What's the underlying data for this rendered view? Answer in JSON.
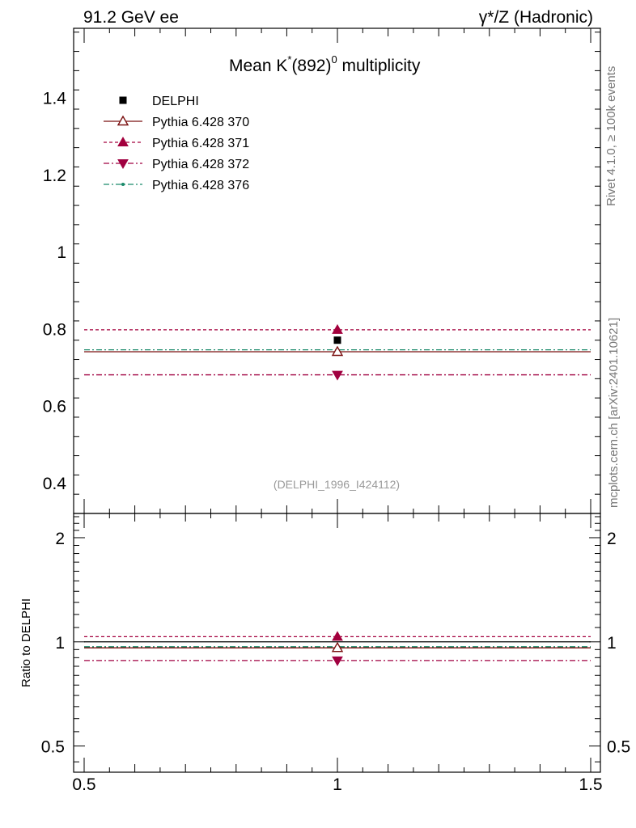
{
  "header": {
    "left": "91.2 GeV ee",
    "right": "γ*/Z (Hadronic)"
  },
  "side_labels": {
    "rivet": "Rivet 4.1.0, ≥ 100k events",
    "mcplots": "mcplots.cern.ch [arXiv:2401.10621]"
  },
  "chart_data": [
    {
      "panel": "main",
      "type": "scatter",
      "title": "Mean K*(892)0 multiplicity",
      "title_parts": {
        "pre": "Mean K",
        "star": "*",
        "mid": "(892)",
        "sup": "0",
        "post": " multiplicity"
      },
      "analysis_label": "(DELPHI_1996_I424112)",
      "xlim": [
        0.5,
        1.5
      ],
      "ylim": [
        0.32,
        1.58
      ],
      "yticks": [
        {
          "v": 0.4,
          "label": "0.4"
        },
        {
          "v": 0.6,
          "label": "0.6"
        },
        {
          "v": 0.8,
          "label": "0.8"
        },
        {
          "v": 1.0,
          "label": "1"
        },
        {
          "v": 1.2,
          "label": "1.2"
        },
        {
          "v": 1.4,
          "label": "1.4"
        }
      ],
      "series": [
        {
          "name": "DELPHI",
          "legend": "DELPHI",
          "x": 1.0,
          "y": 0.77,
          "marker": "square",
          "color": "#000000",
          "line": "none"
        },
        {
          "name": "p370",
          "legend": "Pythia 6.428 370",
          "x": 1.0,
          "y": 0.74,
          "marker": "triangle-up-open",
          "color": "#7a1010",
          "line": "solid"
        },
        {
          "name": "p371",
          "legend": "Pythia 6.428 371",
          "x": 1.0,
          "y": 0.797,
          "marker": "triangle-up",
          "color": "#a3003d",
          "line": "dashed"
        },
        {
          "name": "p372",
          "legend": "Pythia 6.428 372",
          "x": 1.0,
          "y": 0.68,
          "marker": "triangle-down",
          "color": "#a00040",
          "line": "dashdot"
        },
        {
          "name": "p376",
          "legend": "Pythia 6.428 376",
          "x": 1.0,
          "y": 0.745,
          "marker": "dot",
          "color": "#1a8a6a",
          "line": "dashdot"
        }
      ]
    },
    {
      "panel": "ratio",
      "type": "scatter",
      "ylabel": "Ratio to DELPHI",
      "yscale": "log",
      "xlim": [
        0.5,
        1.5
      ],
      "ylim": [
        0.42,
        2.35
      ],
      "yticks": [
        {
          "v": 0.5,
          "label": "0.5"
        },
        {
          "v": 1.0,
          "label": "1"
        },
        {
          "v": 2.0,
          "label": "2"
        }
      ],
      "xticks": [
        {
          "v": 0.5,
          "label": "0.5"
        },
        {
          "v": 1.0,
          "label": "1"
        },
        {
          "v": 1.5,
          "label": "1.5"
        }
      ],
      "series": [
        {
          "name": "p370",
          "y": 0.961,
          "marker": "triangle-up-open",
          "color": "#7a1010",
          "line": "solid"
        },
        {
          "name": "p371",
          "y": 1.035,
          "marker": "triangle-up",
          "color": "#a3003d",
          "line": "dashed"
        },
        {
          "name": "p372",
          "y": 0.883,
          "marker": "triangle-down",
          "color": "#a00040",
          "line": "dashdot"
        },
        {
          "name": "p376",
          "y": 0.968,
          "marker": "dot",
          "color": "#1a8a6a",
          "line": "dashdot"
        }
      ],
      "reference": {
        "y": 1.0,
        "color": "#000000"
      }
    }
  ]
}
